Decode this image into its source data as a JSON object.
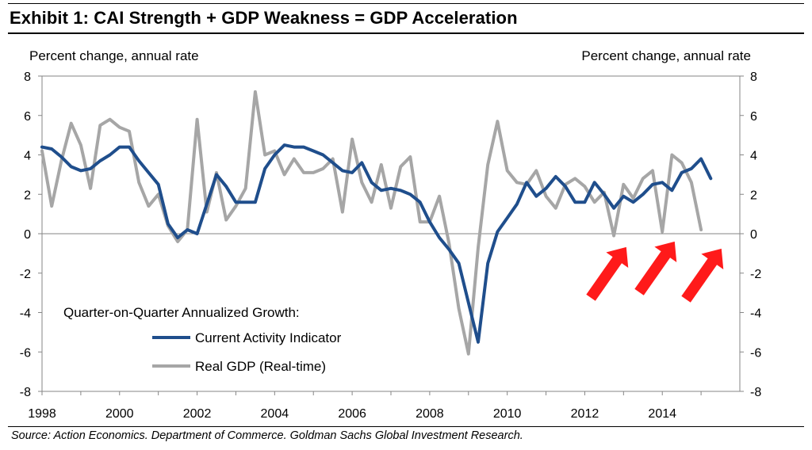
{
  "title": "Exhibit 1: CAI Strength + GDP Weakness = GDP Acceleration",
  "source": "Source: Action Economics. Department of Commerce. Goldman Sachs Global Investment Research.",
  "chart_data": {
    "type": "line",
    "ylabel_left": "Percent change, annual rate",
    "ylabel_right": "Percent change, annual rate",
    "ylim": [
      -8,
      8
    ],
    "xlim": [
      1998,
      2016
    ],
    "y_ticks": [
      "8",
      "6",
      "4",
      "2",
      "0",
      "-2",
      "-4",
      "-6",
      "-8"
    ],
    "x_ticks": [
      "1998",
      "2000",
      "2002",
      "2004",
      "2006",
      "2008",
      "2010",
      "2012",
      "2014"
    ],
    "legend_title": "Quarter-on-Quarter Annualized Growth:",
    "legend_placement": "lower-left",
    "grid": false,
    "series": [
      {
        "name": "Current Activity Indicator",
        "color": "#1f4e8c",
        "x": [
          1998.0,
          1998.25,
          1998.5,
          1998.75,
          1999.0,
          1999.25,
          1999.5,
          1999.75,
          2000.0,
          2000.25,
          2000.5,
          2000.75,
          2001.0,
          2001.25,
          2001.5,
          2001.75,
          2002.0,
          2002.25,
          2002.5,
          2002.75,
          2003.0,
          2003.25,
          2003.5,
          2003.75,
          2004.0,
          2004.25,
          2004.5,
          2004.75,
          2005.0,
          2005.25,
          2005.5,
          2005.75,
          2006.0,
          2006.25,
          2006.5,
          2006.75,
          2007.0,
          2007.25,
          2007.5,
          2007.75,
          2008.0,
          2008.25,
          2008.5,
          2008.75,
          2009.0,
          2009.25,
          2009.5,
          2009.75,
          2010.0,
          2010.25,
          2010.5,
          2010.75,
          2011.0,
          2011.25,
          2011.5,
          2011.75,
          2012.0,
          2012.25,
          2012.5,
          2012.75,
          2013.0,
          2013.25,
          2013.5,
          2013.75,
          2014.0,
          2014.25,
          2014.5,
          2014.75,
          2015.0,
          2015.25
        ],
        "values": [
          4.4,
          4.3,
          3.9,
          3.4,
          3.2,
          3.3,
          3.7,
          4.0,
          4.4,
          4.4,
          3.7,
          3.1,
          2.5,
          0.5,
          -0.2,
          0.2,
          0.0,
          1.5,
          3.0,
          2.4,
          1.6,
          1.6,
          1.6,
          3.3,
          4.0,
          4.5,
          4.4,
          4.4,
          4.2,
          4.0,
          3.6,
          3.2,
          3.1,
          3.6,
          2.6,
          2.2,
          2.3,
          2.2,
          2.0,
          1.6,
          0.6,
          -0.2,
          -0.8,
          -1.5,
          -3.5,
          -5.5,
          -1.5,
          0.1,
          0.8,
          1.5,
          2.6,
          1.9,
          2.3,
          2.9,
          2.4,
          1.6,
          1.6,
          2.6,
          2.0,
          1.3,
          1.9,
          1.6,
          2.0,
          2.5,
          2.6,
          2.2,
          3.1,
          3.3,
          3.8,
          2.8
        ]
      },
      {
        "name": "Real GDP (Real-time)",
        "color": "#a6a6a6",
        "x": [
          1998.0,
          1998.25,
          1998.5,
          1998.75,
          1999.0,
          1999.25,
          1999.5,
          1999.75,
          2000.0,
          2000.25,
          2000.5,
          2000.75,
          2001.0,
          2001.25,
          2001.5,
          2001.75,
          2002.0,
          2002.25,
          2002.5,
          2002.75,
          2003.0,
          2003.25,
          2003.5,
          2003.75,
          2004.0,
          2004.25,
          2004.5,
          2004.75,
          2005.0,
          2005.25,
          2005.5,
          2005.75,
          2006.0,
          2006.25,
          2006.5,
          2006.75,
          2007.0,
          2007.25,
          2007.5,
          2007.75,
          2008.0,
          2008.25,
          2008.5,
          2008.75,
          2009.0,
          2009.25,
          2009.5,
          2009.75,
          2010.0,
          2010.25,
          2010.5,
          2010.75,
          2011.0,
          2011.25,
          2011.5,
          2011.75,
          2012.0,
          2012.25,
          2012.5,
          2012.75,
          2013.0,
          2013.25,
          2013.5,
          2013.75,
          2014.0,
          2014.25,
          2014.5,
          2014.75,
          2015.0,
          2015.25
        ],
        "values": [
          4.2,
          1.4,
          3.7,
          5.6,
          4.5,
          2.3,
          5.5,
          5.8,
          5.4,
          5.2,
          2.6,
          1.4,
          2.0,
          0.4,
          -0.4,
          0.2,
          5.8,
          1.1,
          3.1,
          0.7,
          1.4,
          2.3,
          7.2,
          4.0,
          4.2,
          3.0,
          3.8,
          3.1,
          3.1,
          3.3,
          3.8,
          1.1,
          4.8,
          2.6,
          1.6,
          3.5,
          1.3,
          3.4,
          3.9,
          0.6,
          0.6,
          1.9,
          -0.5,
          -3.8,
          -6.1,
          -0.7,
          3.5,
          5.7,
          3.2,
          2.6,
          2.5,
          3.2,
          1.9,
          1.3,
          2.5,
          2.8,
          2.4,
          1.6,
          2.1,
          -0.1,
          2.5,
          1.8,
          2.8,
          3.2,
          0.1,
          4.0,
          3.6,
          2.6,
          0.2,
          null
        ]
      }
    ],
    "annotations": [
      "red-arrow",
      "red-arrow",
      "red-arrow"
    ],
    "arrow_color": "#ff1a1a"
  }
}
